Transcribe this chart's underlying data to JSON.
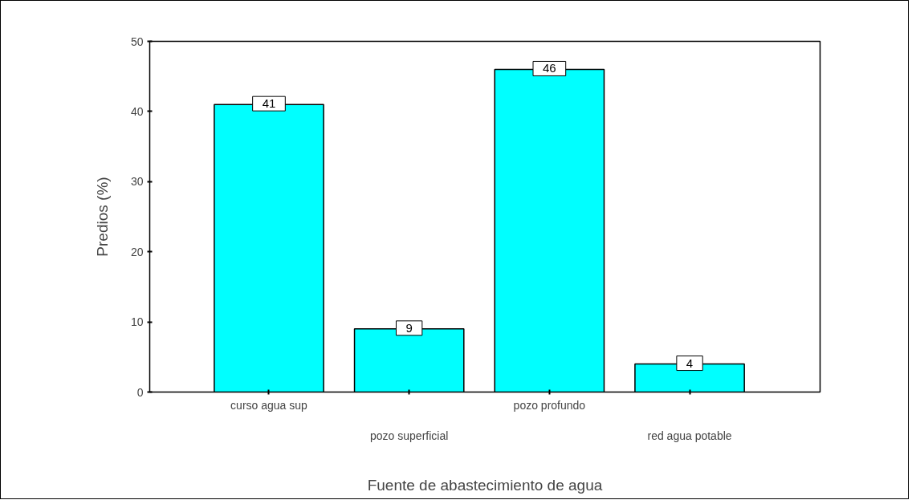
{
  "chart_data": {
    "type": "bar",
    "xlabel": "Fuente de abastecimiento de agua",
    "ylabel": "Predios (%)",
    "categories": [
      "curso agua sup",
      "pozo superficial",
      "pozo profundo",
      "red agua potable"
    ],
    "values": [
      41,
      9,
      46,
      4
    ],
    "color": "#00ffff",
    "ylim": [
      0,
      50
    ],
    "yticks": [
      0,
      10,
      20,
      30,
      40,
      50
    ],
    "grid": false,
    "data_labels": true
  }
}
